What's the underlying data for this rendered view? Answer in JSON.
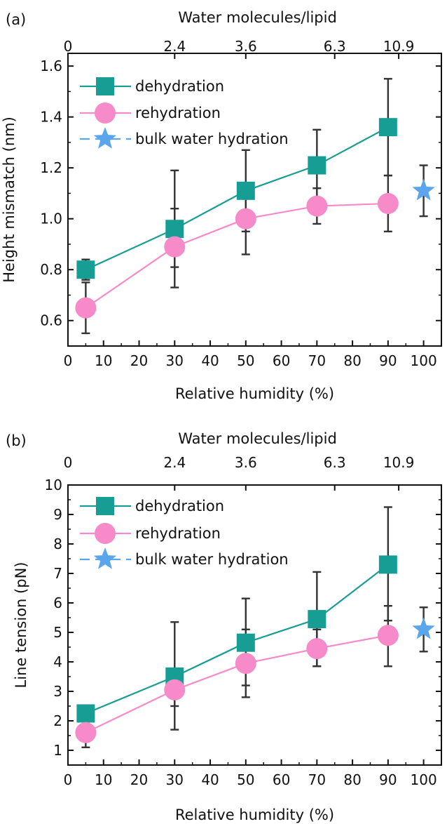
{
  "chart_data": [
    {
      "panel_label": "(a)",
      "type": "line",
      "xlabel": "Relative humidity (%)",
      "ylabel": "Height mismatch (nm)",
      "top_axis_label": "Water molecules/lipid",
      "top_axis_ticks": [
        {
          "label": "0",
          "at_x": 0
        },
        {
          "label": "2.4",
          "at_x": 30
        },
        {
          "label": "3.6",
          "at_x": 50
        },
        {
          "label": "6.3",
          "at_x": 75
        },
        {
          "label": "10.9",
          "at_x": 93
        }
      ],
      "xlim": [
        0,
        105
      ],
      "ylim": [
        0.5,
        1.65
      ],
      "x_ticks": [
        0,
        10,
        20,
        30,
        40,
        50,
        60,
        70,
        80,
        90,
        100
      ],
      "y_ticks": [
        "0.6",
        "0.8",
        "1.0",
        "1.2",
        "1.4",
        "1.6"
      ],
      "legend_position": "top-left",
      "series": [
        {
          "name": "dehydration",
          "color": "#179e94",
          "marker": "square",
          "points": [
            {
              "x": 5,
              "y": 0.8,
              "err_low": 0.76,
              "err_high": 0.84
            },
            {
              "x": 30,
              "y": 0.96,
              "err_low": 0.81,
              "err_high": 1.19
            },
            {
              "x": 50,
              "y": 1.11,
              "err_low": 0.95,
              "err_high": 1.27
            },
            {
              "x": 70,
              "y": 1.21,
              "err_low": 1.06,
              "err_high": 1.35
            },
            {
              "x": 90,
              "y": 1.36,
              "err_low": 1.17,
              "err_high": 1.55
            }
          ]
        },
        {
          "name": "rehydration",
          "color": "#f78ac9",
          "marker": "circle",
          "points": [
            {
              "x": 5,
              "y": 0.65,
              "err_low": 0.55,
              "err_high": 0.75
            },
            {
              "x": 30,
              "y": 0.89,
              "err_low": 0.73,
              "err_high": 1.04
            },
            {
              "x": 50,
              "y": 1.0,
              "err_low": 0.86,
              "err_high": 1.14
            },
            {
              "x": 70,
              "y": 1.05,
              "err_low": 0.98,
              "err_high": 1.12
            },
            {
              "x": 90,
              "y": 1.06,
              "err_low": 0.95,
              "err_high": 1.17
            }
          ]
        },
        {
          "name": "bulk water hydration",
          "color": "#5aa5ec",
          "marker": "star",
          "points": [
            {
              "x": 100,
              "y": 1.11,
              "err_low": 1.01,
              "err_high": 1.21
            }
          ]
        }
      ]
    },
    {
      "panel_label": "(b)",
      "type": "line",
      "xlabel": "Relative humidity (%)",
      "ylabel": "Line tension (pN)",
      "top_axis_label": "Water molecules/lipid",
      "top_axis_ticks": [
        {
          "label": "0",
          "at_x": 0
        },
        {
          "label": "2.4",
          "at_x": 30
        },
        {
          "label": "3.6",
          "at_x": 50
        },
        {
          "label": "6.3",
          "at_x": 75
        },
        {
          "label": "10.9",
          "at_x": 93
        }
      ],
      "xlim": [
        0,
        105
      ],
      "ylim": [
        0.5,
        10
      ],
      "x_ticks": [
        0,
        10,
        20,
        30,
        40,
        50,
        60,
        70,
        80,
        90,
        100
      ],
      "y_ticks": [
        "1",
        "2",
        "3",
        "4",
        "5",
        "6",
        "7",
        "8",
        "9",
        "10"
      ],
      "legend_position": "top-left",
      "series": [
        {
          "name": "dehydration",
          "color": "#179e94",
          "marker": "square",
          "points": [
            {
              "x": 5,
              "y": 2.25,
              "err_low": 2.0,
              "err_high": 2.5
            },
            {
              "x": 30,
              "y": 3.5,
              "err_low": 1.7,
              "err_high": 5.35
            },
            {
              "x": 50,
              "y": 4.65,
              "err_low": 3.2,
              "err_high": 6.15
            },
            {
              "x": 70,
              "y": 5.45,
              "err_low": 3.85,
              "err_high": 7.05
            },
            {
              "x": 90,
              "y": 7.3,
              "err_low": 5.4,
              "err_high": 9.25
            }
          ]
        },
        {
          "name": "rehydration",
          "color": "#f78ac9",
          "marker": "circle",
          "points": [
            {
              "x": 5,
              "y": 1.6,
              "err_low": 1.1,
              "err_high": 2.1
            },
            {
              "x": 30,
              "y": 3.05,
              "err_low": 2.5,
              "err_high": 3.6
            },
            {
              "x": 50,
              "y": 3.95,
              "err_low": 2.8,
              "err_high": 5.1
            },
            {
              "x": 70,
              "y": 4.45,
              "err_low": 3.85,
              "err_high": 5.1
            },
            {
              "x": 90,
              "y": 4.9,
              "err_low": 3.85,
              "err_high": 5.9
            }
          ]
        },
        {
          "name": "bulk water hydration",
          "color": "#5aa5ec",
          "marker": "star",
          "points": [
            {
              "x": 100,
              "y": 5.1,
              "err_low": 4.35,
              "err_high": 5.85
            }
          ]
        }
      ]
    }
  ]
}
